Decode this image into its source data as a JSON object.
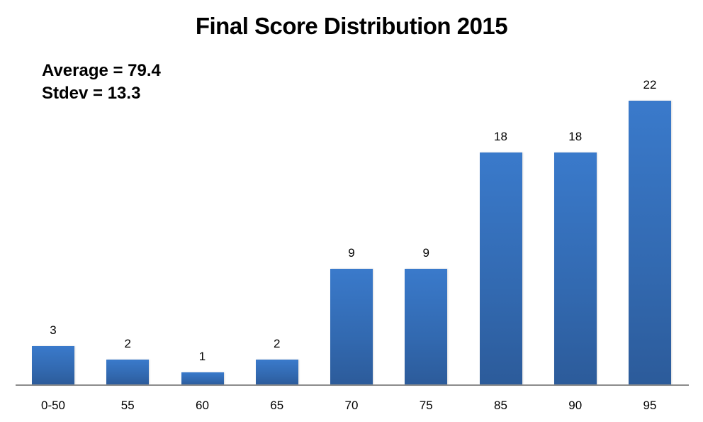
{
  "title": "Final Score Distribution 2015",
  "stats": {
    "average_label": "Average = 79.4",
    "stdev_label": "Stdev = 13.3"
  },
  "bar_color": "#3a75c4",
  "axis_color": "#8c8c8c",
  "chart_data": {
    "type": "bar",
    "title": "Final Score Distribution 2015",
    "xlabel": "",
    "ylabel": "",
    "categories": [
      "0-50",
      "55",
      "60",
      "65",
      "70",
      "75",
      "85",
      "90",
      "95"
    ],
    "values": [
      3,
      2,
      1,
      2,
      9,
      9,
      18,
      18,
      22
    ],
    "data_labels": true,
    "ylim": [
      0,
      22
    ],
    "grid": false,
    "legend": null,
    "annotations": [
      "Average = 79.4",
      "Stdev = 13.3"
    ]
  }
}
